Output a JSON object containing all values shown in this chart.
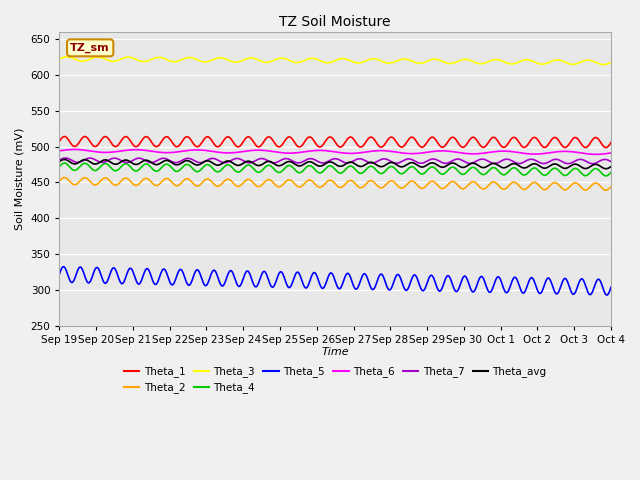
{
  "title": "TZ Soil Moisture",
  "ylabel": "Soil Moisture (mV)",
  "xlabel": "Time",
  "ylim": [
    250,
    660
  ],
  "yticks": [
    250,
    300,
    350,
    400,
    450,
    500,
    550,
    600,
    650
  ],
  "bg_color": "#e8e8e8",
  "legend_label": "TZ_sm",
  "series": {
    "Theta_1": {
      "color": "#ff0000",
      "base": 507,
      "amplitude": 7,
      "trend": -1.5,
      "freq_day": 1.8
    },
    "Theta_2": {
      "color": "#ffa500",
      "base": 452,
      "amplitude": 5,
      "trend": -8.0,
      "freq_day": 1.8
    },
    "Theta_3": {
      "color": "#ffff00",
      "base": 622,
      "amplitude": 3,
      "trend": -5.0,
      "freq_day": 1.2
    },
    "Theta_4": {
      "color": "#00cc00",
      "base": 472,
      "amplitude": 5,
      "trend": -8.0,
      "freq_day": 1.8
    },
    "Theta_5": {
      "color": "#0000ff",
      "base": 322,
      "amplitude": 11,
      "trend": -18.0,
      "freq_day": 2.2
    },
    "Theta_6": {
      "color": "#ff00ff",
      "base": 494,
      "amplitude": 2,
      "trend": -3.0,
      "freq_day": 0.6
    },
    "Theta_7": {
      "color": "#aa00cc",
      "base": 481,
      "amplitude": 3,
      "trend": -2.0,
      "freq_day": 1.5
    },
    "Theta_avg": {
      "color": "#000000",
      "base": 479,
      "amplitude": 3,
      "trend": -7.0,
      "freq_day": 1.8
    }
  },
  "xtick_labels": [
    "Sep 19",
    "Sep 20",
    "Sep 21",
    "Sep 22",
    "Sep 23",
    "Sep 24",
    "Sep 25",
    "Sep 26",
    "Sep 27",
    "Sep 28",
    "Sep 29",
    "Sep 30",
    "Oct 1",
    "Oct 2",
    "Oct 3",
    "Oct 4"
  ],
  "n_points": 480,
  "total_days": 15
}
